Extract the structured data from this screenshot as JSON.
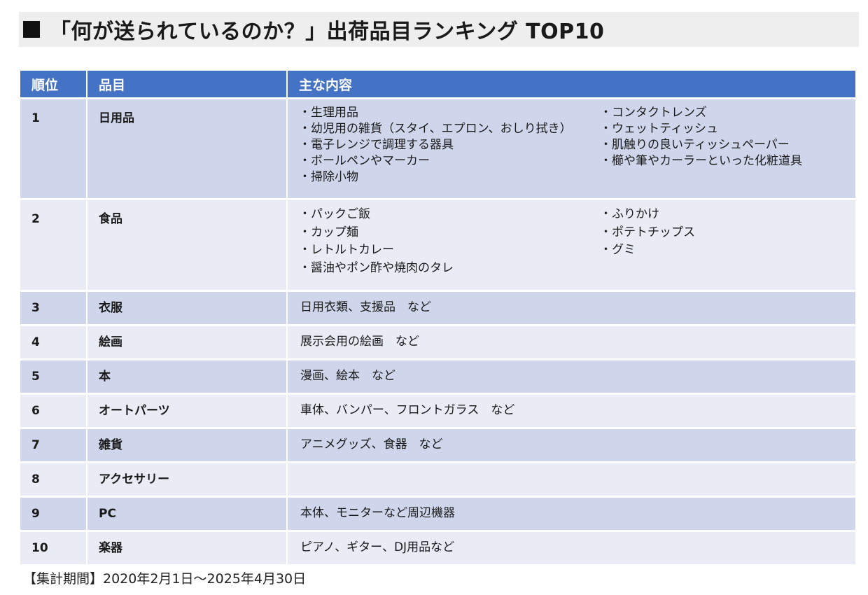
{
  "title": "「何が送られているのか？」出荷品目ランキング TOP10",
  "table": {
    "headers": [
      "順位",
      "品目",
      "主な内容"
    ],
    "rows": [
      {
        "rank": "1",
        "item": "日用品",
        "col_a": [
          "・生理用品",
          "・幼児用の雑貨（スタイ、エプロン、おしり拭き）",
          "・電子レンジで調理する器具",
          "・ボールペンやマーカー",
          "・掃除小物"
        ],
        "col_b": [
          "・コンタクトレンズ",
          "・ウェットティッシュ",
          "・肌触りの良いティッシュペーパー",
          "・櫛や筆やカーラーといった化粧道具"
        ]
      },
      {
        "rank": "2",
        "item": "食品",
        "col_a": [
          "・パックご飯",
          "・カップ麺",
          "・レトルトカレー",
          "・醤油やポン酢や焼肉のタレ"
        ],
        "col_b": [
          "・ふりかけ",
          "・ポテトチップス",
          "・グミ"
        ]
      },
      {
        "rank": "3",
        "item": "衣服",
        "content": "日用衣類、支援品　など"
      },
      {
        "rank": "4",
        "item": "絵画",
        "content": "展示会用の絵画　など"
      },
      {
        "rank": "5",
        "item": "本",
        "content": "漫画、絵本　など"
      },
      {
        "rank": "6",
        "item": "オートパーツ",
        "content": "車体、バンパー、フロントガラス　など"
      },
      {
        "rank": "7",
        "item": "雑貨",
        "content": "アニメグッズ、食器　など"
      },
      {
        "rank": "8",
        "item": "アクセサリー",
        "content": ""
      },
      {
        "rank": "9",
        "item": "PC",
        "content": "本体、モニターなど周辺機器"
      },
      {
        "rank": "10",
        "item": "楽器",
        "content": "ピアノ、ギター、DJ用品など"
      }
    ]
  },
  "footer": "【集計期間】2020年2月1日～2025年4月30日",
  "colors": {
    "header_bg": "#4472c4",
    "row_dark": "#cfd5ea",
    "row_light": "#e9ebf5",
    "title_bg": "#eeeeee"
  }
}
